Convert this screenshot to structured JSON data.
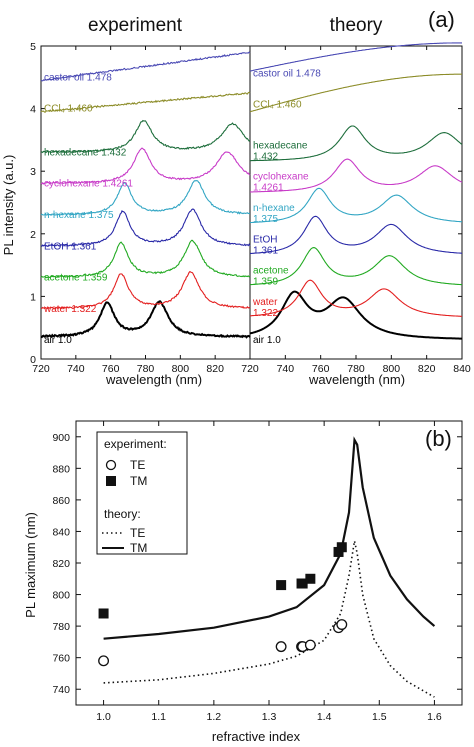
{
  "chart_data": [
    {
      "panel": "(a)",
      "type": "line",
      "titles": [
        "experiment",
        "theory"
      ],
      "xlabel": "wavelength (nm)",
      "ylabel": "PL intensity (a.u.)",
      "xlim": [
        720,
        840
      ],
      "xlim_right": [
        720,
        840
      ],
      "xticks": [
        720,
        740,
        760,
        780,
        800,
        820,
        840
      ],
      "ylim": [
        0,
        5
      ],
      "yticks": [
        0,
        1,
        2,
        3,
        4,
        5
      ],
      "series": [
        {
          "name": "air",
          "value": "1.0",
          "label": "air 1.0",
          "color": "#000000",
          "offset": 0.3,
          "exp": {
            "te": 758,
            "tm": 788,
            "h1": 0.53,
            "h2": 0.55,
            "w1": 5,
            "w2": 6,
            "base": 0.35
          },
          "th": {
            "te": 745,
            "tm": 773,
            "h1": 0.68,
            "h2": 0.62,
            "w1": 9,
            "w2": 12,
            "base": 0.3
          }
        },
        {
          "name": "water",
          "value": "1.322",
          "label": "water 1.322",
          "color": "#e32020",
          "offset": 0.8,
          "exp": {
            "te": 766,
            "tm": 806,
            "h1": 0.55,
            "h2": 0.58,
            "w1": 5,
            "w2": 6,
            "base": 0.8
          },
          "th": {
            "te": 754,
            "tm": 796,
            "h1": 0.58,
            "h2": 0.45,
            "w1": 8,
            "w2": 11,
            "base": 0.65
          }
        },
        {
          "name": "acetone",
          "value": "1.359",
          "label": "acetone 1.359",
          "color": "#22aa22",
          "offset": 1.3,
          "exp": {
            "te": 766,
            "tm": 807,
            "h1": 0.55,
            "h2": 0.58,
            "w1": 5,
            "w2": 6,
            "base": 1.3
          },
          "th": {
            "te": 756,
            "tm": 799,
            "h1": 0.6,
            "h2": 0.48,
            "w1": 8,
            "w2": 11,
            "base": 1.15
          }
        },
        {
          "name": "EtOH",
          "value": "1.361",
          "label": "EtOH 1.361",
          "color": "#2a2aa8",
          "offset": 1.8,
          "exp": {
            "te": 767,
            "tm": 807,
            "h1": 0.55,
            "h2": 0.58,
            "w1": 5,
            "w2": 6,
            "base": 1.8
          },
          "th": {
            "te": 757,
            "tm": 800,
            "h1": 0.6,
            "h2": 0.48,
            "w1": 8,
            "w2": 11,
            "base": 1.65
          }
        },
        {
          "name": "n-hexane",
          "value": "1.375",
          "label": "n-hexane 1.375",
          "color": "#33a6c4",
          "offset": 2.3,
          "exp": {
            "te": 768,
            "tm": 809,
            "h1": 0.5,
            "h2": 0.55,
            "w1": 5,
            "w2": 6,
            "base": 2.3
          },
          "th": {
            "te": 759,
            "tm": 803,
            "h1": 0.55,
            "h2": 0.45,
            "w1": 8,
            "w2": 11,
            "base": 2.15
          }
        },
        {
          "name": "cyclohexane",
          "value": "1.4261",
          "label": "cyclohexane 1.4261",
          "color": "#c83cc8",
          "offset": 2.8,
          "exp": {
            "te": 778,
            "tm": 827,
            "h1": 0.55,
            "h2": 0.5,
            "w1": 6,
            "w2": 8,
            "base": 2.8
          },
          "th": {
            "te": 775,
            "tm": 825,
            "h1": 0.52,
            "h2": 0.42,
            "w1": 9,
            "w2": 12,
            "base": 2.65
          }
        },
        {
          "name": "hexadecane",
          "value": "1.432",
          "label": "hexadecane 1.432",
          "color": "#1e6e3c",
          "offset": 3.3,
          "exp": {
            "te": 779,
            "tm": 830,
            "h1": 0.5,
            "h2": 0.45,
            "w1": 6,
            "w2": 8,
            "base": 3.3
          },
          "th": {
            "te": 778,
            "tm": 830,
            "h1": 0.55,
            "h2": 0.45,
            "w1": 9,
            "w2": 12,
            "base": 3.15
          }
        },
        {
          "name": "CCl4",
          "value": "1.460",
          "label": "CCl₄ 1.460",
          "color": "#8c8c28",
          "offset": 4.0,
          "exp": {
            "slope": 0.3,
            "base": 3.95
          },
          "th": {
            "slope": 0.6,
            "base": 3.95
          }
        },
        {
          "name": "castor oil",
          "value": "1.478",
          "label": "castor oil 1.478",
          "color": "#4a4ab4",
          "offset": 4.5,
          "exp": {
            "slope": 0.45,
            "base": 4.45
          },
          "th": {
            "slope": 0.45,
            "base": 4.6
          }
        }
      ]
    },
    {
      "panel": "(b)",
      "type": "scatter",
      "xlabel": "refractive index",
      "ylabel": "PL maximum (nm)",
      "xlim": [
        0.95,
        1.65
      ],
      "ylim": [
        730,
        910
      ],
      "xticks": [
        1.0,
        1.1,
        1.2,
        1.3,
        1.4,
        1.5,
        1.6
      ],
      "yticks": [
        740,
        760,
        780,
        800,
        820,
        840,
        860,
        880,
        900
      ],
      "legend": {
        "experiment_title": "experiment:",
        "theory_title": "theory:",
        "te": "TE",
        "tm": "TM"
      },
      "experiment_TE": [
        [
          1.0,
          758
        ],
        [
          1.322,
          767
        ],
        [
          1.359,
          767
        ],
        [
          1.361,
          767
        ],
        [
          1.375,
          768
        ],
        [
          1.4261,
          779
        ],
        [
          1.432,
          781
        ]
      ],
      "experiment_TM": [
        [
          1.0,
          788
        ],
        [
          1.322,
          806
        ],
        [
          1.359,
          807
        ],
        [
          1.361,
          807
        ],
        [
          1.375,
          810
        ],
        [
          1.4261,
          827
        ],
        [
          1.432,
          830
        ]
      ],
      "theory_TM": [
        [
          1.0,
          772
        ],
        [
          1.1,
          775
        ],
        [
          1.2,
          779
        ],
        [
          1.3,
          786
        ],
        [
          1.35,
          792
        ],
        [
          1.4,
          806
        ],
        [
          1.43,
          826
        ],
        [
          1.445,
          852
        ],
        [
          1.455,
          898
        ],
        [
          1.46,
          895
        ],
        [
          1.47,
          868
        ],
        [
          1.49,
          836
        ],
        [
          1.52,
          812
        ],
        [
          1.55,
          797
        ],
        [
          1.58,
          786
        ],
        [
          1.6,
          780
        ]
      ],
      "theory_TE": [
        [
          1.0,
          744
        ],
        [
          1.1,
          746
        ],
        [
          1.2,
          750
        ],
        [
          1.3,
          756
        ],
        [
          1.35,
          761
        ],
        [
          1.4,
          771
        ],
        [
          1.43,
          788
        ],
        [
          1.445,
          812
        ],
        [
          1.455,
          834
        ],
        [
          1.46,
          826
        ],
        [
          1.47,
          800
        ],
        [
          1.49,
          772
        ],
        [
          1.52,
          755
        ],
        [
          1.55,
          745
        ],
        [
          1.58,
          739
        ],
        [
          1.6,
          735
        ]
      ]
    }
  ]
}
